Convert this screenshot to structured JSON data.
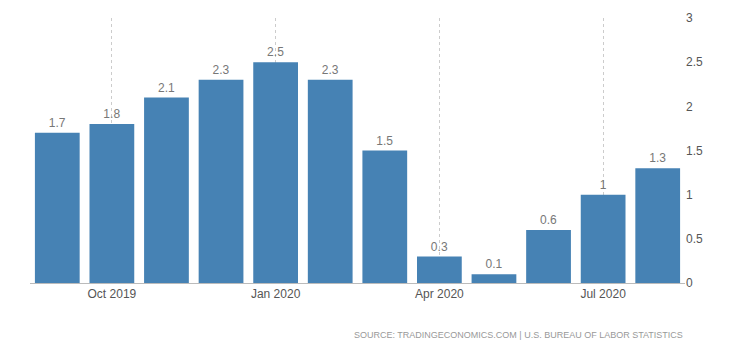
{
  "chart_data": {
    "type": "bar",
    "categories": [
      null,
      "Oct 2019",
      null,
      null,
      "Jan 2020",
      null,
      null,
      "Apr 2020",
      null,
      null,
      "Jul 2020",
      null
    ],
    "values": [
      1.7,
      1.8,
      2.1,
      2.3,
      2.5,
      2.3,
      1.5,
      0.3,
      0.1,
      0.6,
      1,
      1.3
    ],
    "color": "#4682b4",
    "ylim": [
      0,
      3
    ],
    "yticks": [
      0,
      0.5,
      1,
      1.5,
      2,
      2.5,
      3
    ],
    "grid": true,
    "data_labels": true,
    "annotations": [
      "SOURCE: TRADINGECONOMICS.COM | U.S. BUREAU OF LABOR STATISTICS"
    ]
  }
}
